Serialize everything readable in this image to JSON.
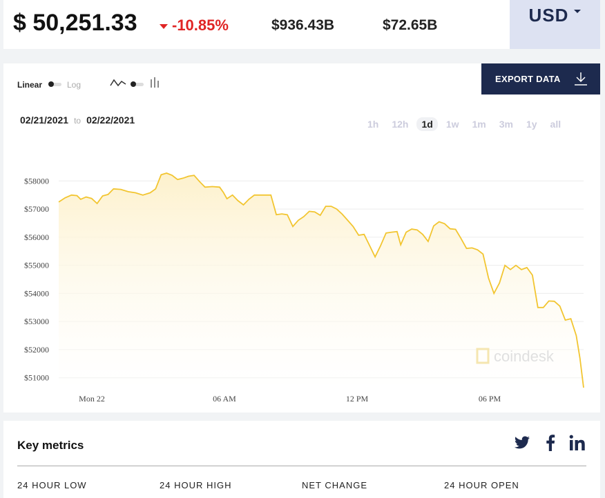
{
  "ticker": {
    "price": "$ 50,251.33",
    "change": "-10.85%",
    "market_cap": "$936.43B",
    "volume": "$72.65B",
    "currency": "USD"
  },
  "chart_controls": {
    "scale_linear": "Linear",
    "scale_log": "Log",
    "export_label": "EXPORT DATA",
    "date_from": "02/21/2021",
    "date_to_word": "to",
    "date_to": "02/22/2021",
    "ranges": [
      "1h",
      "12h",
      "1d",
      "1w",
      "1m",
      "3m",
      "1y",
      "all"
    ],
    "active_range": "1d",
    "watermark": "coindesk"
  },
  "chart_data": {
    "type": "area",
    "title": "",
    "xlabel": "",
    "ylabel": "",
    "x_ticks": [
      "Mon 22",
      "06 AM",
      "12 PM",
      "06 PM"
    ],
    "y_ticks": [
      "$51000",
      "$52000",
      "$53000",
      "$54000",
      "$55000",
      "$56000",
      "$57000",
      "$58000"
    ],
    "ylim": [
      50600,
      58500
    ],
    "x_range_hours": [
      0,
      24
    ],
    "grid": true,
    "line_color": "#f2c530",
    "fill_color": "#fdf1cc",
    "points": [
      [
        0,
        57250
      ],
      [
        0.35,
        57400
      ],
      [
        0.7,
        57500
      ],
      [
        1.0,
        57480
      ],
      [
        1.2,
        57350
      ],
      [
        1.5,
        57430
      ],
      [
        1.8,
        57380
      ],
      [
        2.1,
        57200
      ],
      [
        2.4,
        57470
      ],
      [
        2.7,
        57520
      ],
      [
        3.0,
        57720
      ],
      [
        3.4,
        57700
      ],
      [
        3.8,
        57620
      ],
      [
        4.2,
        57580
      ],
      [
        4.6,
        57500
      ],
      [
        5.0,
        57580
      ],
      [
        5.3,
        57720
      ],
      [
        5.6,
        58220
      ],
      [
        5.9,
        58280
      ],
      [
        6.2,
        58200
      ],
      [
        6.5,
        58050
      ],
      [
        6.8,
        58100
      ],
      [
        7.1,
        58170
      ],
      [
        7.4,
        58200
      ],
      [
        7.7,
        57980
      ],
      [
        8.0,
        57780
      ],
      [
        8.4,
        57800
      ],
      [
        8.8,
        57780
      ],
      [
        9.0,
        57600
      ],
      [
        9.2,
        57370
      ],
      [
        9.5,
        57500
      ],
      [
        9.8,
        57300
      ],
      [
        10.1,
        57150
      ],
      [
        10.4,
        57350
      ],
      [
        10.7,
        57500
      ],
      [
        11.0,
        57500
      ],
      [
        11.3,
        57500
      ],
      [
        11.6,
        57500
      ],
      [
        11.9,
        56800
      ],
      [
        12.2,
        56830
      ],
      [
        12.5,
        56800
      ],
      [
        12.8,
        56380
      ],
      [
        13.1,
        56600
      ],
      [
        13.4,
        56730
      ],
      [
        13.7,
        56920
      ],
      [
        14.0,
        56900
      ],
      [
        14.3,
        56780
      ],
      [
        14.6,
        57100
      ],
      [
        14.9,
        57100
      ],
      [
        15.2,
        57000
      ],
      [
        15.5,
        56820
      ],
      [
        15.8,
        56600
      ],
      [
        16.1,
        56380
      ],
      [
        16.4,
        56070
      ],
      [
        16.7,
        56100
      ],
      [
        17.0,
        55700
      ],
      [
        17.3,
        55300
      ],
      [
        17.6,
        55700
      ],
      [
        17.9,
        56150
      ],
      [
        18.2,
        56180
      ],
      [
        18.5,
        56200
      ],
      [
        18.7,
        55730
      ],
      [
        19.0,
        56180
      ],
      [
        19.3,
        56290
      ],
      [
        19.6,
        56260
      ],
      [
        19.9,
        56100
      ],
      [
        20.2,
        55850
      ],
      [
        20.5,
        56400
      ],
      [
        20.8,
        56550
      ],
      [
        21.1,
        56480
      ],
      [
        21.4,
        56300
      ],
      [
        21.7,
        56280
      ],
      [
        22.0,
        55950
      ],
      [
        22.3,
        55600
      ],
      [
        22.6,
        55620
      ],
      [
        22.9,
        55550
      ],
      [
        23.2,
        55400
      ],
      [
        23.5,
        54550
      ],
      [
        23.8,
        54000
      ],
      [
        24.1,
        54370
      ],
      [
        24.4,
        55000
      ],
      [
        24.7,
        54850
      ],
      [
        25.0,
        55000
      ],
      [
        25.3,
        54850
      ],
      [
        25.6,
        54920
      ],
      [
        25.9,
        54650
      ],
      [
        26.2,
        53500
      ],
      [
        26.5,
        53500
      ],
      [
        26.8,
        53730
      ],
      [
        27.1,
        53720
      ],
      [
        27.4,
        53550
      ],
      [
        27.7,
        53050
      ],
      [
        28.0,
        53100
      ],
      [
        28.3,
        52500
      ],
      [
        28.5,
        51700
      ],
      [
        28.7,
        50650
      ]
    ]
  },
  "metrics": {
    "title": "Key metrics",
    "labels": [
      "24 HOUR LOW",
      "24 HOUR HIGH",
      "NET CHANGE",
      "24 HOUR OPEN"
    ]
  },
  "icons": {
    "twitter": "twitter-icon",
    "facebook": "facebook-icon",
    "linkedin": "linkedin-icon",
    "export": "download-arrow-icon"
  }
}
